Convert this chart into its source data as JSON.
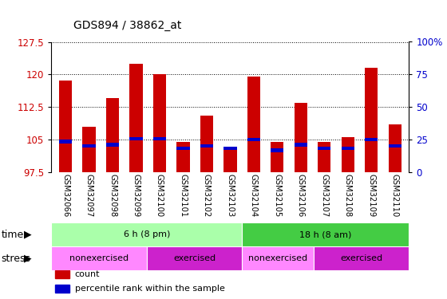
{
  "title": "GDS894 / 38862_at",
  "samples": [
    "GSM32066",
    "GSM32097",
    "GSM32098",
    "GSM32099",
    "GSM32100",
    "GSM32101",
    "GSM32102",
    "GSM32103",
    "GSM32104",
    "GSM32105",
    "GSM32106",
    "GSM32107",
    "GSM32108",
    "GSM32109",
    "GSM32110"
  ],
  "bar_tops": [
    118.5,
    108.0,
    114.5,
    122.5,
    120.0,
    104.5,
    110.5,
    102.5,
    119.5,
    104.5,
    113.5,
    104.5,
    105.5,
    121.5,
    108.5
  ],
  "percentile_vals": [
    104.5,
    103.5,
    103.8,
    105.2,
    105.2,
    103.0,
    103.5,
    103.0,
    105.0,
    102.5,
    103.8,
    103.0,
    103.0,
    105.0,
    103.5
  ],
  "bar_bottom": 97.5,
  "ylim_left": [
    97.5,
    127.5
  ],
  "yticks_left": [
    97.5,
    105.0,
    112.5,
    120.0,
    127.5
  ],
  "ytick_labels_left": [
    "97.5",
    "105",
    "112.5",
    "120",
    "127.5"
  ],
  "yticks_right_labels": [
    "0",
    "25",
    "50",
    "75",
    "100%"
  ],
  "bar_color": "#cc0000",
  "percentile_color": "#0000cc",
  "plot_bg": "#ffffff",
  "tick_label_bg": "#c8c8c8",
  "time_groups": [
    {
      "text": "6 h (8 pm)",
      "start": 0,
      "end": 8,
      "color": "#aaffaa"
    },
    {
      "text": "18 h (8 am)",
      "start": 8,
      "end": 15,
      "color": "#44cc44"
    }
  ],
  "stress_groups": [
    {
      "text": "nonexercised",
      "start": 0,
      "end": 4,
      "color": "#ff88ff"
    },
    {
      "text": "exercised",
      "start": 4,
      "end": 8,
      "color": "#cc22cc"
    },
    {
      "text": "nonexercised",
      "start": 8,
      "end": 11,
      "color": "#ff88ff"
    },
    {
      "text": "exercised",
      "start": 11,
      "end": 15,
      "color": "#cc22cc"
    }
  ],
  "legend_items": [
    {
      "label": "count",
      "color": "#cc0000"
    },
    {
      "label": "percentile rank within the sample",
      "color": "#0000cc"
    }
  ],
  "right_axis_color": "#0000cc",
  "left_axis_color": "#cc0000",
  "fig_bg": "#ffffff",
  "n_samples": 15
}
